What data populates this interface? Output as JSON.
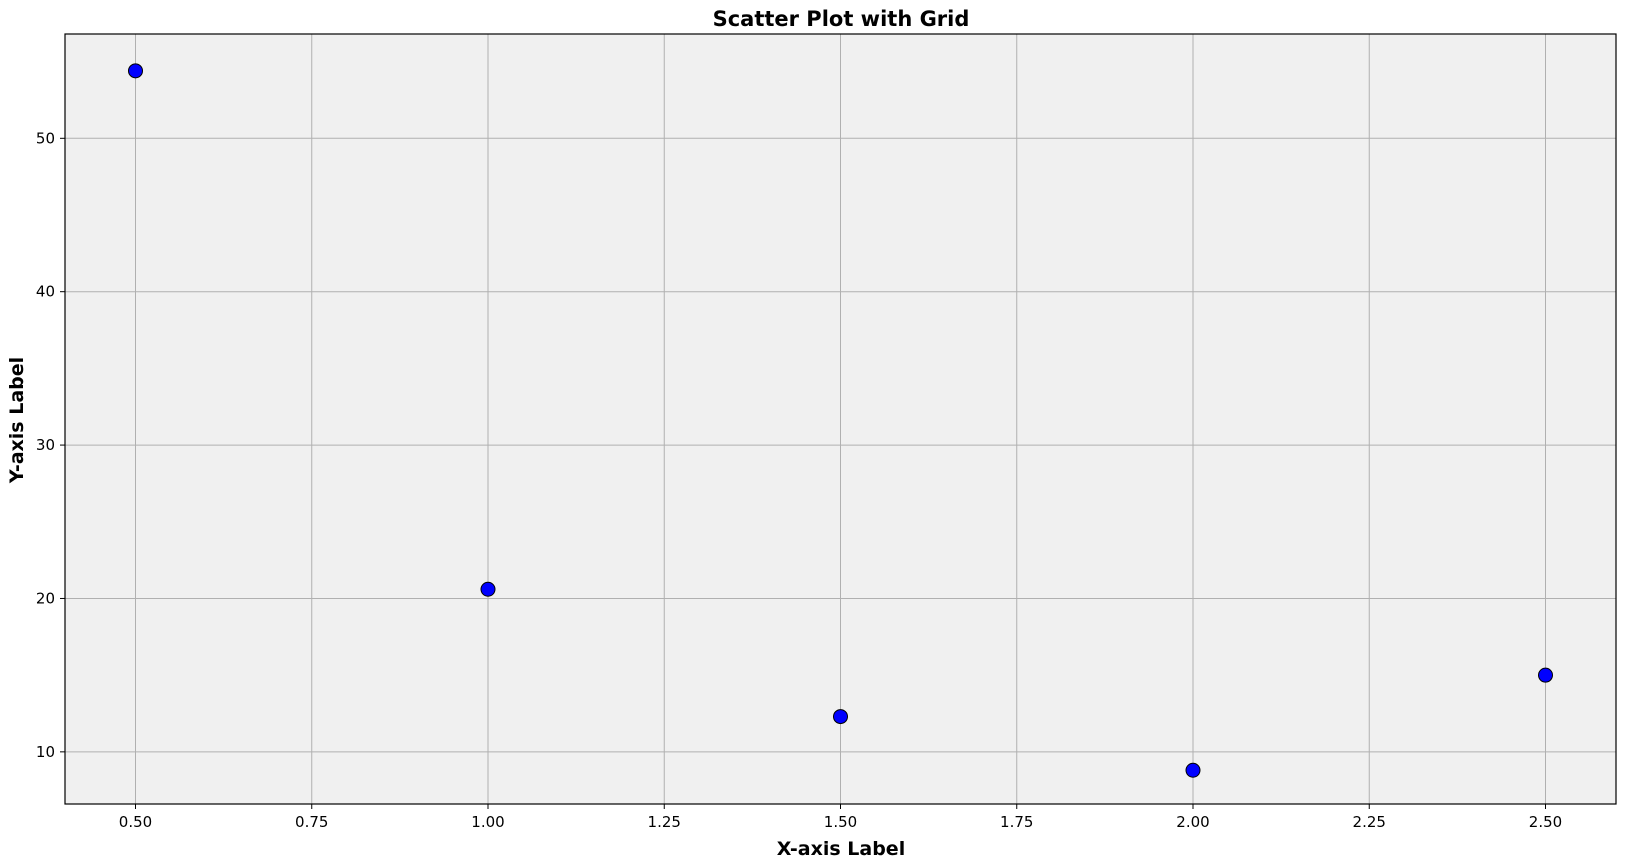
{
  "chart_data": {
    "type": "scatter",
    "title": "Scatter Plot with Grid",
    "xlabel": "X-axis Label",
    "ylabel": "Y-axis Label",
    "x": [
      0.5,
      1.0,
      1.5,
      2.0,
      2.5
    ],
    "y": [
      54.4,
      20.6,
      12.3,
      8.8,
      15.0
    ],
    "xlim": [
      0.4,
      2.6
    ],
    "ylim": [
      6.6,
      56.8
    ],
    "xticks": [
      0.5,
      0.75,
      1.0,
      1.25,
      1.5,
      1.75,
      2.0,
      2.25,
      2.5
    ],
    "xtick_labels": [
      "0.50",
      "0.75",
      "1.00",
      "1.25",
      "1.50",
      "1.75",
      "2.00",
      "2.25",
      "2.50"
    ],
    "yticks": [
      10,
      20,
      30,
      40,
      50
    ],
    "ytick_labels": [
      "10",
      "20",
      "30",
      "40",
      "50"
    ],
    "grid": true,
    "colors": {
      "point_fill": "#0000ff",
      "point_edge": "#000000",
      "plot_background": "#f0f0f0",
      "grid": "#b0b0b0"
    }
  }
}
